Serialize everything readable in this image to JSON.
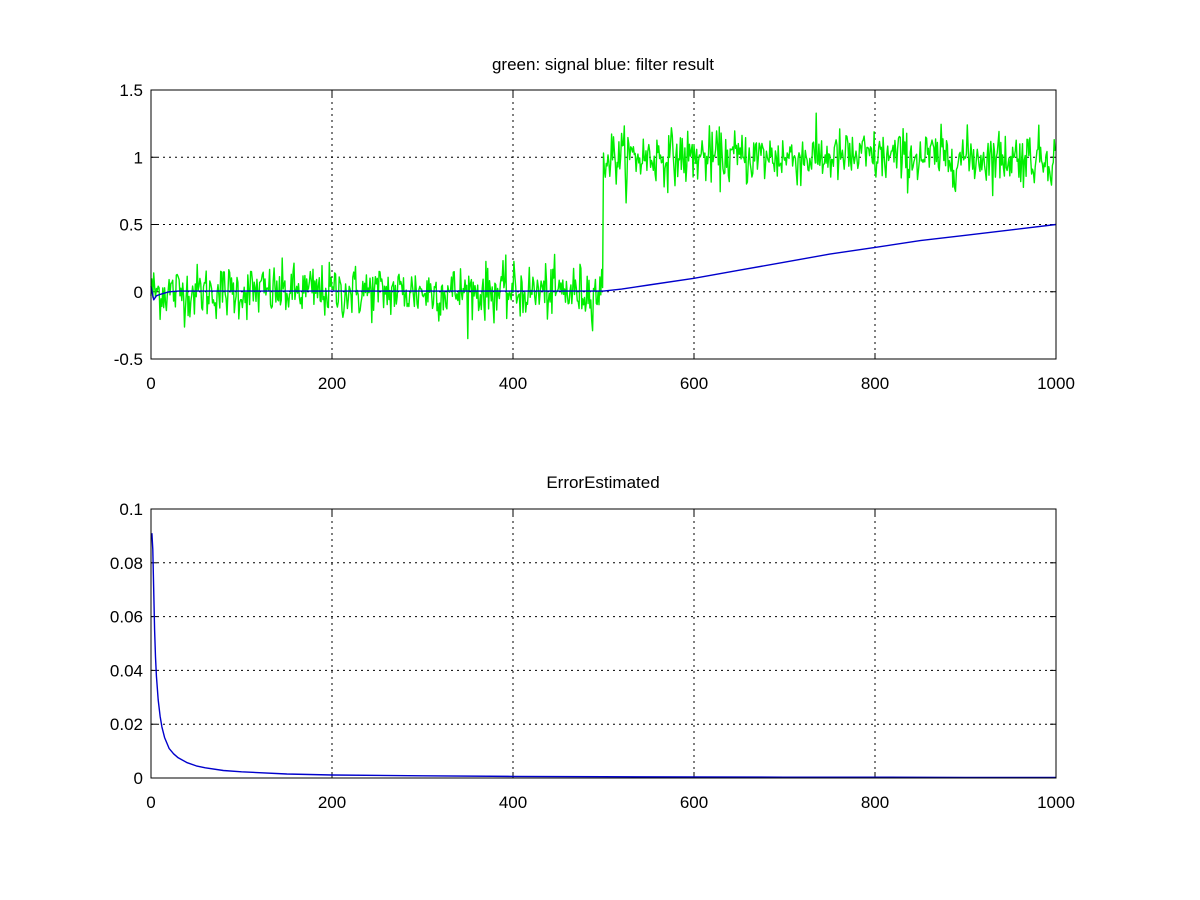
{
  "chart_data": [
    {
      "type": "line",
      "title": "green: signal  blue: filter result",
      "xlim": [
        0,
        1000
      ],
      "ylim": [
        -0.5,
        1.5
      ],
      "xticks": [
        0,
        200,
        400,
        600,
        800,
        1000
      ],
      "xtick_labels": [
        "0",
        "200",
        "400",
        "600",
        "800",
        "1000"
      ],
      "yticks": [
        -0.5,
        0,
        0.5,
        1,
        1.5
      ],
      "ytick_labels": [
        "-0.5",
        "0",
        "0.5",
        "1",
        "1.5"
      ],
      "grid": true,
      "series": [
        {
          "color": "#00ee00",
          "generator": "step_noise",
          "n": 1000,
          "step_at": 500,
          "level_before": 0,
          "level_after": 1,
          "noise_sd": 0.1
        },
        {
          "color": "#0000cc",
          "x": [
            0,
            3,
            6,
            10,
            15,
            20,
            30,
            40,
            50,
            100,
            200,
            300,
            400,
            500,
            520,
            550,
            600,
            650,
            700,
            750,
            800,
            850,
            900,
            950,
            1000
          ],
          "y": [
            0.04,
            -0.06,
            -0.03,
            -0.02,
            -0.01,
            0.0,
            0.005,
            0.005,
            0.005,
            0.005,
            0.005,
            0.005,
            0.005,
            0.005,
            0.02,
            0.05,
            0.1,
            0.16,
            0.22,
            0.28,
            0.33,
            0.38,
            0.42,
            0.46,
            0.5
          ]
        }
      ]
    },
    {
      "type": "line",
      "title": "ErrorEstimated",
      "xlim": [
        0,
        1000
      ],
      "ylim": [
        0,
        0.1
      ],
      "xticks": [
        0,
        200,
        400,
        600,
        800,
        1000
      ],
      "xtick_labels": [
        "0",
        "200",
        "400",
        "600",
        "800",
        "1000"
      ],
      "yticks": [
        0,
        0.02,
        0.04,
        0.06,
        0.08,
        0.1
      ],
      "ytick_labels": [
        "0",
        "0.02",
        "0.04",
        "0.06",
        "0.08",
        "0.1"
      ],
      "grid": true,
      "series": [
        {
          "color": "#0000cc",
          "x": [
            1,
            2,
            3,
            4,
            5,
            6,
            8,
            10,
            12,
            15,
            20,
            25,
            30,
            40,
            50,
            60,
            80,
            100,
            150,
            200,
            300,
            400,
            500,
            600,
            700,
            800,
            900,
            1000
          ],
          "y": [
            0.091,
            0.085,
            0.07,
            0.055,
            0.045,
            0.038,
            0.029,
            0.023,
            0.019,
            0.015,
            0.011,
            0.009,
            0.0075,
            0.0057,
            0.0045,
            0.0038,
            0.0028,
            0.0023,
            0.0015,
            0.0011,
            0.0008,
            0.0006,
            0.0005,
            0.0004,
            0.0003,
            0.0003,
            0.0002,
            0.0002
          ]
        }
      ]
    }
  ]
}
